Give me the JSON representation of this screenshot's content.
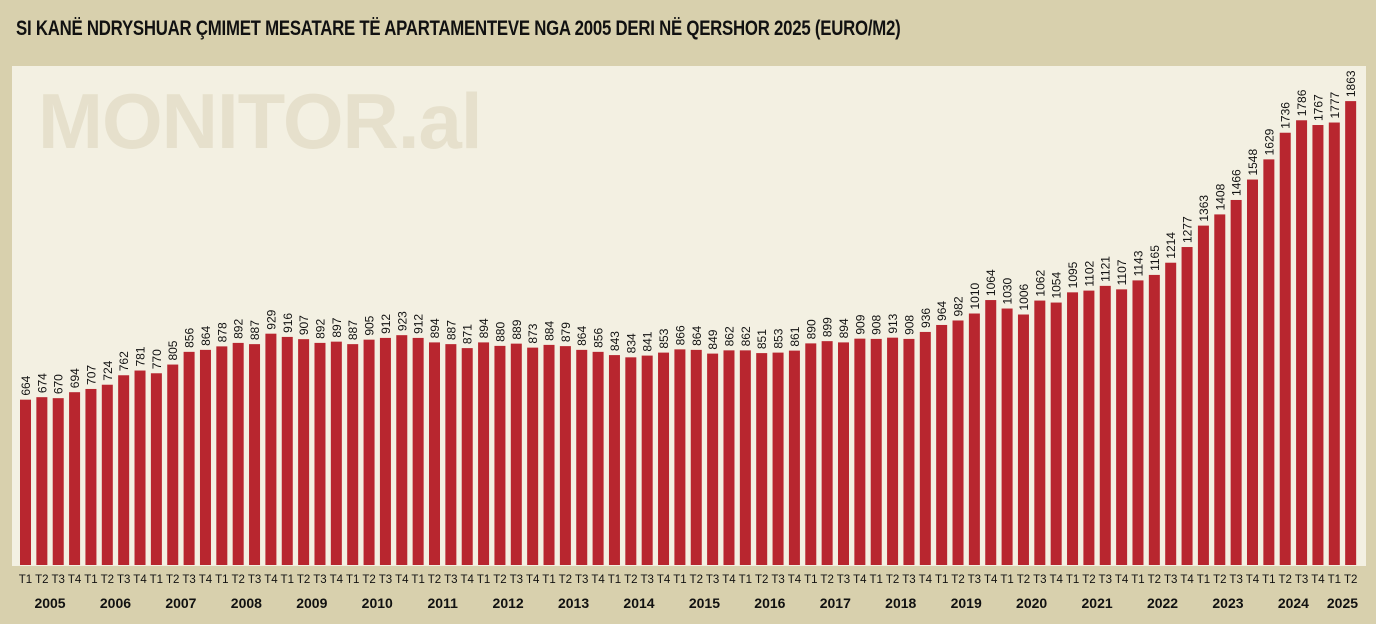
{
  "chart_data": {
    "type": "bar",
    "title": "SI KANË NDRYSHUAR ÇMIMET MESATARE TË APARTAMENTEVE NGA 2005 DERI NË QERSHOR 2025 (EURO/M2)",
    "watermark": "MONITOR.al",
    "bar_color": "#b8262f",
    "background_color": "#d8d0ad",
    "plot_background_color": "#f3f0e2",
    "years": [
      {
        "year": "2005",
        "quarters": [
          "T1",
          "T2",
          "T3",
          "T4"
        ],
        "values": [
          664,
          674,
          670,
          694
        ]
      },
      {
        "year": "2006",
        "quarters": [
          "T1",
          "T2",
          "T3",
          "T4"
        ],
        "values": [
          707,
          724,
          762,
          781
        ]
      },
      {
        "year": "2007",
        "quarters": [
          "T1",
          "T2",
          "T3",
          "T4"
        ],
        "values": [
          770,
          805,
          856,
          864
        ]
      },
      {
        "year": "2008",
        "quarters": [
          "T1",
          "T2",
          "T3",
          "T4"
        ],
        "values": [
          878,
          892,
          887,
          929
        ]
      },
      {
        "year": "2009",
        "quarters": [
          "T1",
          "T2",
          "T3",
          "T4"
        ],
        "values": [
          916,
          907,
          892,
          897
        ]
      },
      {
        "year": "2010",
        "quarters": [
          "T1",
          "T2",
          "T3",
          "T4"
        ],
        "values": [
          887,
          905,
          912,
          923
        ]
      },
      {
        "year": "2011",
        "quarters": [
          "T1",
          "T2",
          "T3",
          "T4"
        ],
        "values": [
          912,
          894,
          887,
          871
        ]
      },
      {
        "year": "2012",
        "quarters": [
          "T1",
          "T2",
          "T3",
          "T4"
        ],
        "values": [
          894,
          880,
          889,
          873
        ]
      },
      {
        "year": "2013",
        "quarters": [
          "T1",
          "T2",
          "T3",
          "T4"
        ],
        "values": [
          884,
          879,
          864,
          856
        ]
      },
      {
        "year": "2014",
        "quarters": [
          "T1",
          "T2",
          "T3",
          "T4"
        ],
        "values": [
          843,
          834,
          841,
          853
        ]
      },
      {
        "year": "2015",
        "quarters": [
          "T1",
          "T2",
          "T3",
          "T4"
        ],
        "values": [
          866,
          864,
          849,
          862
        ]
      },
      {
        "year": "2016",
        "quarters": [
          "T1",
          "T2",
          "T3",
          "T4"
        ],
        "values": [
          862,
          851,
          853,
          861
        ]
      },
      {
        "year": "2017",
        "quarters": [
          "T1",
          "T2",
          "T3",
          "T4"
        ],
        "values": [
          890,
          899,
          894,
          909
        ]
      },
      {
        "year": "2018",
        "quarters": [
          "T1",
          "T2",
          "T3",
          "T4"
        ],
        "values": [
          908,
          913,
          908,
          936
        ]
      },
      {
        "year": "2019",
        "quarters": [
          "T1",
          "T2",
          "T3",
          "T4"
        ],
        "values": [
          964,
          982,
          1010,
          1064
        ]
      },
      {
        "year": "2020",
        "quarters": [
          "T1",
          "T2",
          "T3",
          "T4"
        ],
        "values": [
          1030,
          1006,
          1062,
          1054
        ]
      },
      {
        "year": "2021",
        "quarters": [
          "T1",
          "T2",
          "T3",
          "T4"
        ],
        "values": [
          1095,
          1102,
          1121,
          1107
        ]
      },
      {
        "year": "2022",
        "quarters": [
          "T1",
          "T2",
          "T3",
          "T4"
        ],
        "values": [
          1143,
          1165,
          1214,
          1277
        ]
      },
      {
        "year": "2023",
        "quarters": [
          "T1",
          "T2",
          "T3",
          "T4"
        ],
        "values": [
          1363,
          1408,
          1466,
          1548
        ]
      },
      {
        "year": "2024",
        "quarters": [
          "T1",
          "T2",
          "T3",
          "T4"
        ],
        "values": [
          1629,
          1736,
          1786,
          1767
        ]
      },
      {
        "year": "2025",
        "quarters": [
          "T1",
          "T2"
        ],
        "values": [
          1777,
          1863
        ]
      }
    ],
    "ylim": [
      0,
      2000
    ],
    "grid": false,
    "data_labels": true
  }
}
